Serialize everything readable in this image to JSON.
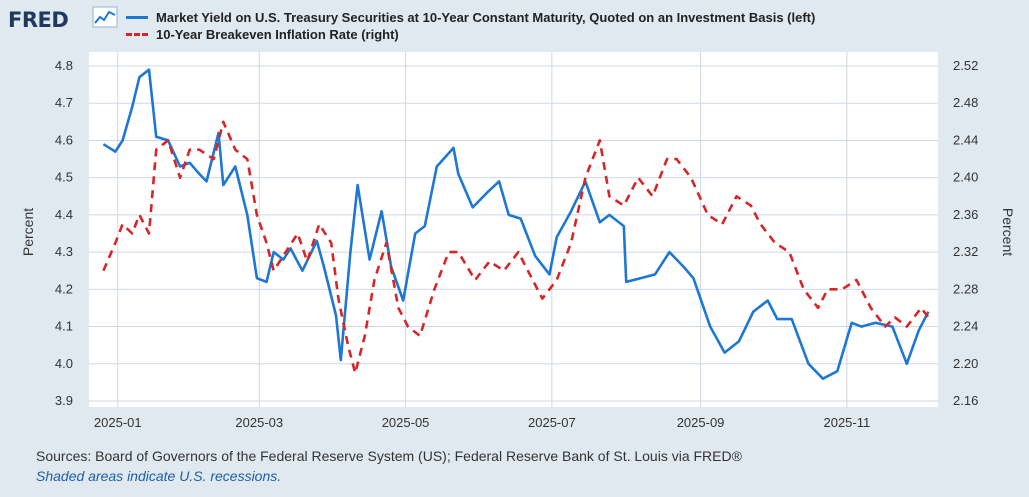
{
  "header": {
    "logo_text": "FRED",
    "logo_icon": "chart-line-icon"
  },
  "legend": {
    "series1": "Market Yield on U.S. Treasury Securities at 10-Year Constant Maturity, Quoted on an Investment Basis (left)",
    "series2": "10-Year Breakeven Inflation Rate (right)"
  },
  "footer": {
    "sources": "Sources: Board of Governors of the Federal Reserve System (US); Federal Reserve Bank of St. Louis via FRED®",
    "note": "Shaded areas indicate U.S. recessions."
  },
  "chart_data": {
    "type": "line",
    "ylabel_left": "Percent",
    "ylabel_right": "Percent",
    "left_axis": {
      "ylim": [
        3.9,
        4.8
      ],
      "ticks": [
        "4.8",
        "4.7",
        "4.6",
        "4.5",
        "4.4",
        "4.3",
        "4.2",
        "4.1",
        "4.0",
        "3.9"
      ]
    },
    "right_axis": {
      "ylim": [
        2.16,
        2.52
      ],
      "ticks": [
        "2.52",
        "2.48",
        "2.44",
        "2.40",
        "2.36",
        "2.32",
        "2.28",
        "2.24",
        "2.20",
        "2.16"
      ]
    },
    "x_ticks": [
      "2025-01",
      "2025-03",
      "2025-05",
      "2025-07",
      "2025-09",
      "2025-11"
    ],
    "grid": true,
    "colors": {
      "series1": "#1f77d4",
      "series2": "#d62728",
      "grid": "#cfd8e2",
      "plot_bg": "#ffffff"
    },
    "series": [
      {
        "name": "Market Yield on U.S. Treasury Securities at 10-Year Constant Maturity, Quoted on an Investment Basis (left)",
        "axis": "left",
        "style": "solid",
        "dates": [
          "2024-12-26",
          "2024-12-31",
          "2025-01-03",
          "2025-01-07",
          "2025-01-10",
          "2025-01-14",
          "2025-01-17",
          "2025-01-22",
          "2025-01-27",
          "2025-01-31",
          "2025-02-04",
          "2025-02-07",
          "2025-02-12",
          "2025-02-14",
          "2025-02-19",
          "2025-02-24",
          "2025-02-28",
          "2025-03-04",
          "2025-03-07",
          "2025-03-11",
          "2025-03-14",
          "2025-03-19",
          "2025-03-25",
          "2025-03-28",
          "2025-04-02",
          "2025-04-04",
          "2025-04-08",
          "2025-04-11",
          "2025-04-16",
          "2025-04-21",
          "2025-04-25",
          "2025-04-30",
          "2025-05-05",
          "2025-05-09",
          "2025-05-14",
          "2025-05-21",
          "2025-05-23",
          "2025-05-29",
          "2025-06-04",
          "2025-06-09",
          "2025-06-13",
          "2025-06-18",
          "2025-06-24",
          "2025-06-30",
          "2025-07-03",
          "2025-07-09",
          "2025-07-15",
          "2025-07-21",
          "2025-07-25",
          "2025-07-31",
          "2025-08-01",
          "2025-08-07",
          "2025-08-13",
          "2025-08-19",
          "2025-08-25",
          "2025-08-29",
          "2025-09-05",
          "2025-09-11",
          "2025-09-17",
          "2025-09-23",
          "2025-09-29",
          "2025-10-03",
          "2025-10-09",
          "2025-10-16",
          "2025-10-22",
          "2025-10-28",
          "2025-11-03",
          "2025-11-07",
          "2025-11-13",
          "2025-11-20",
          "2025-11-26",
          "2025-12-01",
          "2025-12-05"
        ],
        "values": [
          4.59,
          4.57,
          4.6,
          4.69,
          4.77,
          4.79,
          4.61,
          4.6,
          4.53,
          4.54,
          4.51,
          4.49,
          4.62,
          4.48,
          4.53,
          4.4,
          4.23,
          4.22,
          4.3,
          4.28,
          4.31,
          4.25,
          4.33,
          4.26,
          4.13,
          4.01,
          4.3,
          4.48,
          4.28,
          4.41,
          4.26,
          4.17,
          4.35,
          4.37,
          4.53,
          4.58,
          4.51,
          4.42,
          4.46,
          4.49,
          4.4,
          4.39,
          4.29,
          4.24,
          4.34,
          4.41,
          4.49,
          4.38,
          4.4,
          4.37,
          4.22,
          4.23,
          4.24,
          4.3,
          4.26,
          4.23,
          4.1,
          4.03,
          4.06,
          4.14,
          4.17,
          4.12,
          4.12,
          4.0,
          3.96,
          3.98,
          4.11,
          4.1,
          4.11,
          4.1,
          4.0,
          4.09,
          4.14
        ]
      },
      {
        "name": "10-Year Breakeven Inflation Rate (right)",
        "axis": "right",
        "style": "dashed",
        "dates": [
          "2024-12-26",
          "2024-12-31",
          "2025-01-03",
          "2025-01-07",
          "2025-01-10",
          "2025-01-14",
          "2025-01-17",
          "2025-01-22",
          "2025-01-27",
          "2025-01-31",
          "2025-02-04",
          "2025-02-10",
          "2025-02-14",
          "2025-02-19",
          "2025-02-24",
          "2025-02-28",
          "2025-03-04",
          "2025-03-07",
          "2025-03-12",
          "2025-03-17",
          "2025-03-21",
          "2025-03-26",
          "2025-03-31",
          "2025-04-03",
          "2025-04-07",
          "2025-04-10",
          "2025-04-14",
          "2025-04-18",
          "2025-04-23",
          "2025-04-28",
          "2025-05-02",
          "2025-05-07",
          "2025-05-13",
          "2025-05-19",
          "2025-05-23",
          "2025-05-30",
          "2025-06-05",
          "2025-06-11",
          "2025-06-17",
          "2025-06-23",
          "2025-06-27",
          "2025-07-03",
          "2025-07-09",
          "2025-07-15",
          "2025-07-21",
          "2025-07-25",
          "2025-07-31",
          "2025-08-06",
          "2025-08-12",
          "2025-08-18",
          "2025-08-22",
          "2025-08-28",
          "2025-09-04",
          "2025-09-10",
          "2025-09-16",
          "2025-09-22",
          "2025-09-26",
          "2025-10-02",
          "2025-10-08",
          "2025-10-14",
          "2025-10-20",
          "2025-10-24",
          "2025-10-30",
          "2025-11-05",
          "2025-11-11",
          "2025-11-17",
          "2025-11-21",
          "2025-11-26",
          "2025-12-02",
          "2025-12-05"
        ],
        "values": [
          2.3,
          2.33,
          2.35,
          2.34,
          2.36,
          2.34,
          2.43,
          2.44,
          2.4,
          2.43,
          2.43,
          2.42,
          2.46,
          2.43,
          2.42,
          2.36,
          2.33,
          2.3,
          2.32,
          2.34,
          2.31,
          2.35,
          2.33,
          2.27,
          2.22,
          2.19,
          2.23,
          2.29,
          2.33,
          2.26,
          2.24,
          2.23,
          2.28,
          2.32,
          2.32,
          2.29,
          2.31,
          2.3,
          2.32,
          2.29,
          2.27,
          2.29,
          2.33,
          2.4,
          2.44,
          2.38,
          2.37,
          2.4,
          2.38,
          2.42,
          2.42,
          2.4,
          2.36,
          2.35,
          2.38,
          2.37,
          2.35,
          2.33,
          2.32,
          2.28,
          2.26,
          2.28,
          2.28,
          2.29,
          2.26,
          2.24,
          2.25,
          2.24,
          2.26,
          2.25
        ]
      }
    ]
  }
}
